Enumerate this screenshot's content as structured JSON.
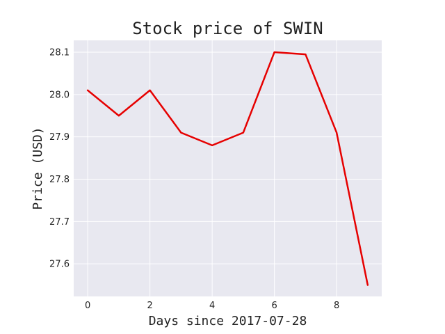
{
  "chart_data": {
    "type": "line",
    "title": "Stock price of SWIN",
    "xlabel": "Days since 2017-07-28",
    "ylabel": "Price (USD)",
    "xlim": [
      -0.45,
      9.45
    ],
    "ylim": [
      27.523,
      28.128
    ],
    "xticks": [
      0,
      2,
      4,
      6,
      8
    ],
    "xtick_labels": [
      "0",
      "2",
      "4",
      "6",
      "8"
    ],
    "yticks": [
      27.6,
      27.7,
      27.8,
      27.9,
      28.0,
      28.1
    ],
    "ytick_labels": [
      "27.6",
      "27.7",
      "27.8",
      "27.9",
      "28.0",
      "28.1"
    ],
    "grid": true,
    "background_color": "#e8e8f0",
    "series": [
      {
        "color": "#e60000",
        "x": [
          0,
          1,
          2,
          3,
          4,
          5,
          6,
          7,
          8,
          9
        ],
        "y": [
          28.01,
          27.95,
          28.01,
          27.91,
          27.88,
          27.91,
          28.1,
          28.095,
          27.91,
          27.55
        ]
      }
    ]
  }
}
